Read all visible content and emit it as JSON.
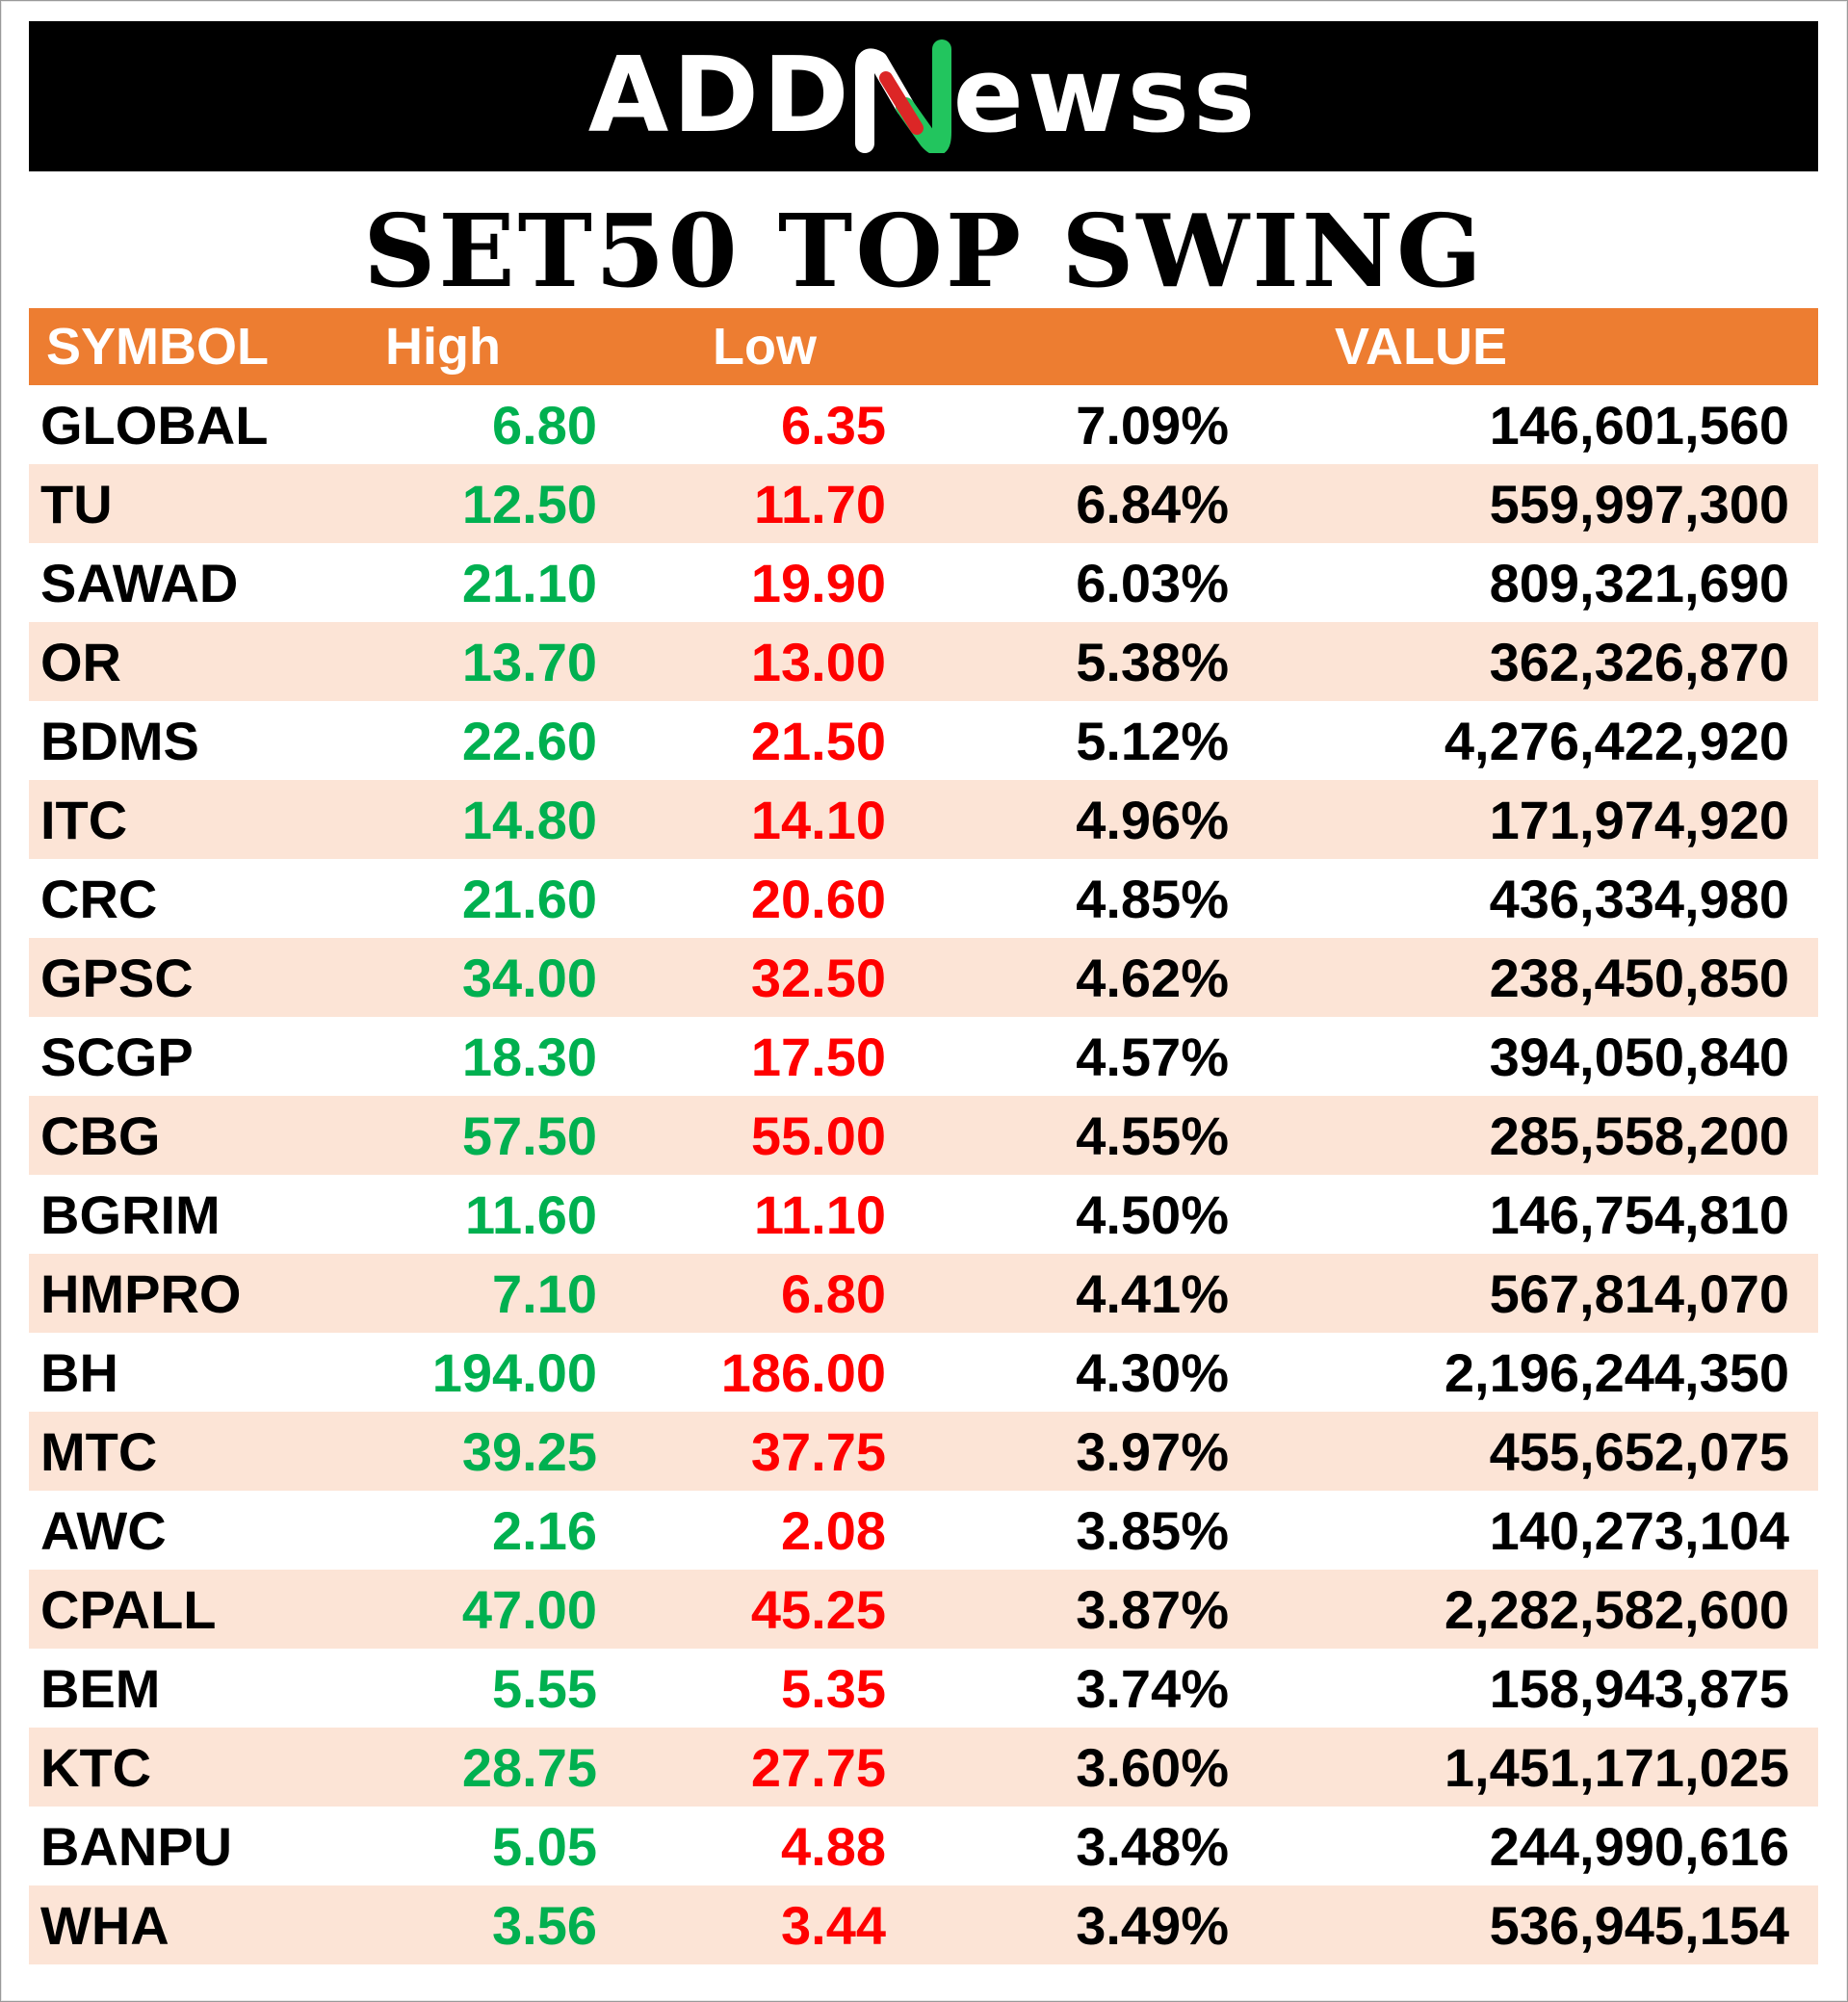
{
  "brand": {
    "left": "ADD",
    "mark": "N",
    "right": "ewss",
    "colors": {
      "mark_green": "#22c55e",
      "mark_red": "#dc2626"
    }
  },
  "title": "SET50 TOP SWING",
  "table": {
    "headers": {
      "symbol": "SYMBOL",
      "high": "High",
      "low": "Low",
      "pct": "",
      "value": "VALUE"
    },
    "colors": {
      "header_bg": "#ed7d31",
      "alt_row_bg": "#fce4d6",
      "high": "#00b050",
      "low": "#ff0000"
    },
    "rows": [
      {
        "symbol": "GLOBAL",
        "high": "6.80",
        "low": "6.35",
        "pct": "7.09%",
        "value": "146,601,560"
      },
      {
        "symbol": "TU",
        "high": "12.50",
        "low": "11.70",
        "pct": "6.84%",
        "value": "559,997,300"
      },
      {
        "symbol": "SAWAD",
        "high": "21.10",
        "low": "19.90",
        "pct": "6.03%",
        "value": "809,321,690"
      },
      {
        "symbol": "OR",
        "high": "13.70",
        "low": "13.00",
        "pct": "5.38%",
        "value": "362,326,870"
      },
      {
        "symbol": "BDMS",
        "high": "22.60",
        "low": "21.50",
        "pct": "5.12%",
        "value": "4,276,422,920"
      },
      {
        "symbol": "ITC",
        "high": "14.80",
        "low": "14.10",
        "pct": "4.96%",
        "value": "171,974,920"
      },
      {
        "symbol": "CRC",
        "high": "21.60",
        "low": "20.60",
        "pct": "4.85%",
        "value": "436,334,980"
      },
      {
        "symbol": "GPSC",
        "high": "34.00",
        "low": "32.50",
        "pct": "4.62%",
        "value": "238,450,850"
      },
      {
        "symbol": "SCGP",
        "high": "18.30",
        "low": "17.50",
        "pct": "4.57%",
        "value": "394,050,840"
      },
      {
        "symbol": "CBG",
        "high": "57.50",
        "low": "55.00",
        "pct": "4.55%",
        "value": "285,558,200"
      },
      {
        "symbol": "BGRIM",
        "high": "11.60",
        "low": "11.10",
        "pct": "4.50%",
        "value": "146,754,810"
      },
      {
        "symbol": "HMPRO",
        "high": "7.10",
        "low": "6.80",
        "pct": "4.41%",
        "value": "567,814,070"
      },
      {
        "symbol": "BH",
        "high": "194.00",
        "low": "186.00",
        "pct": "4.30%",
        "value": "2,196,244,350"
      },
      {
        "symbol": "MTC",
        "high": "39.25",
        "low": "37.75",
        "pct": "3.97%",
        "value": "455,652,075"
      },
      {
        "symbol": "AWC",
        "high": "2.16",
        "low": "2.08",
        "pct": "3.85%",
        "value": "140,273,104"
      },
      {
        "symbol": "CPALL",
        "high": "47.00",
        "low": "45.25",
        "pct": "3.87%",
        "value": "2,282,582,600"
      },
      {
        "symbol": "BEM",
        "high": "5.55",
        "low": "5.35",
        "pct": "3.74%",
        "value": "158,943,875"
      },
      {
        "symbol": "KTC",
        "high": "28.75",
        "low": "27.75",
        "pct": "3.60%",
        "value": "1,451,171,025"
      },
      {
        "symbol": "BANPU",
        "high": "5.05",
        "low": "4.88",
        "pct": "3.48%",
        "value": "244,990,616"
      },
      {
        "symbol": "WHA",
        "high": "3.56",
        "low": "3.44",
        "pct": "3.49%",
        "value": "536,945,154"
      }
    ]
  }
}
